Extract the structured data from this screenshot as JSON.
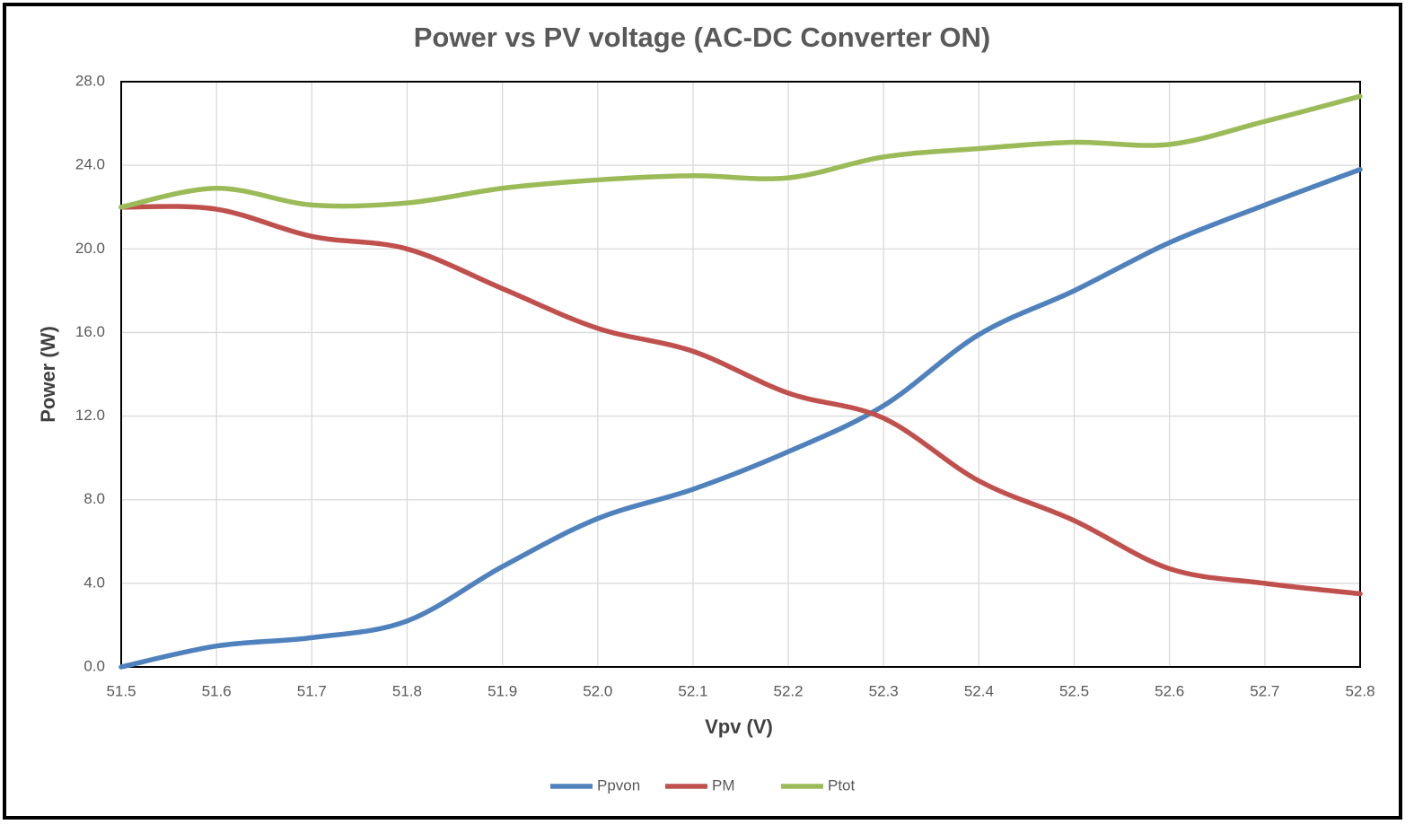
{
  "chart_data": {
    "type": "line",
    "title": "Power vs PV voltage (AC-DC Converter ON)",
    "x_label": "Vpv (V)",
    "y_label": "Power (W)",
    "x": [
      51.5,
      51.6,
      51.7,
      51.8,
      51.9,
      52.0,
      52.1,
      52.2,
      52.3,
      52.4,
      52.5,
      52.6,
      52.7,
      52.8
    ],
    "series": [
      {
        "name": "Ppvon",
        "color": "#4f81bd",
        "values": [
          0,
          1.0,
          1.4,
          2.2,
          4.8,
          7.1,
          8.5,
          10.3,
          12.5,
          15.9,
          18.0,
          20.3,
          22.1,
          23.8
        ]
      },
      {
        "name": "PM",
        "color": "#c0504d",
        "values": [
          22.0,
          21.9,
          20.6,
          20.0,
          18.1,
          16.2,
          15.1,
          13.1,
          11.9,
          8.9,
          7.0,
          4.7,
          4.0,
          3.5
        ]
      },
      {
        "name": "Ptot",
        "color": "#9bbb59",
        "values": [
          22.0,
          22.9,
          22.1,
          22.2,
          22.9,
          23.3,
          23.5,
          23.4,
          24.4,
          24.8,
          25.1,
          25.0,
          26.1,
          27.3
        ]
      }
    ],
    "xlim": [
      51.5,
      52.8
    ],
    "xticks": [
      51.5,
      51.6,
      51.7,
      51.8,
      51.9,
      {
        "value": 52,
        "label": "52.0"
      },
      52.1,
      52.2,
      52.3,
      52.4,
      52.5,
      52.6,
      52.7,
      52.8
    ],
    "ylim": [
      0,
      28
    ],
    "yticks": [
      {
        "value": 0,
        "label": "0.0"
      },
      {
        "value": 4,
        "label": "4.0"
      },
      {
        "value": 8,
        "label": "8.0"
      },
      {
        "value": 12,
        "label": "12.0"
      },
      {
        "value": 16,
        "label": "16.0"
      },
      {
        "value": 20,
        "label": "20.0"
      },
      {
        "value": 24,
        "label": "24.0"
      },
      {
        "value": 28,
        "label": "28.0"
      }
    ],
    "grid": true,
    "legend": "bottom"
  }
}
